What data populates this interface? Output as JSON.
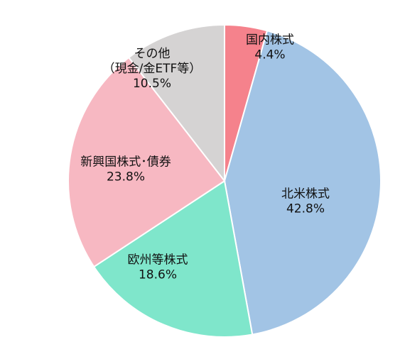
{
  "chart_data": {
    "type": "pie",
    "title": "",
    "slices": [
      {
        "name": "国内株式",
        "label_lines": [
          "国内株式",
          "4.4%"
        ],
        "value": 4.4,
        "pct_label": "4.4%",
        "color": "#f5828c"
      },
      {
        "name": "北米株式",
        "label_lines": [
          "北米株式",
          "42.8%"
        ],
        "value": 42.8,
        "pct_label": "42.8%",
        "color": "#a2c4e5"
      },
      {
        "name": "欧州等株式",
        "label_lines": [
          "欧州等株式",
          "18.6%"
        ],
        "value": 18.6,
        "pct_label": "18.6%",
        "color": "#7fe6cb"
      },
      {
        "name": "新興国株式･債券",
        "label_lines": [
          "新興国株式･債券",
          "23.8%"
        ],
        "value": 23.8,
        "pct_label": "23.8%",
        "color": "#f7b8c2"
      },
      {
        "name": "その他（現金/金ETF等）",
        "label_lines": [
          "その他",
          "（現金/金ETF等）",
          "10.5%"
        ],
        "value": 10.5,
        "pct_label": "10.5%",
        "color": "#d5d3d3"
      }
    ],
    "start_angle_deg": 0,
    "direction": "clockwise",
    "legend": "none"
  }
}
